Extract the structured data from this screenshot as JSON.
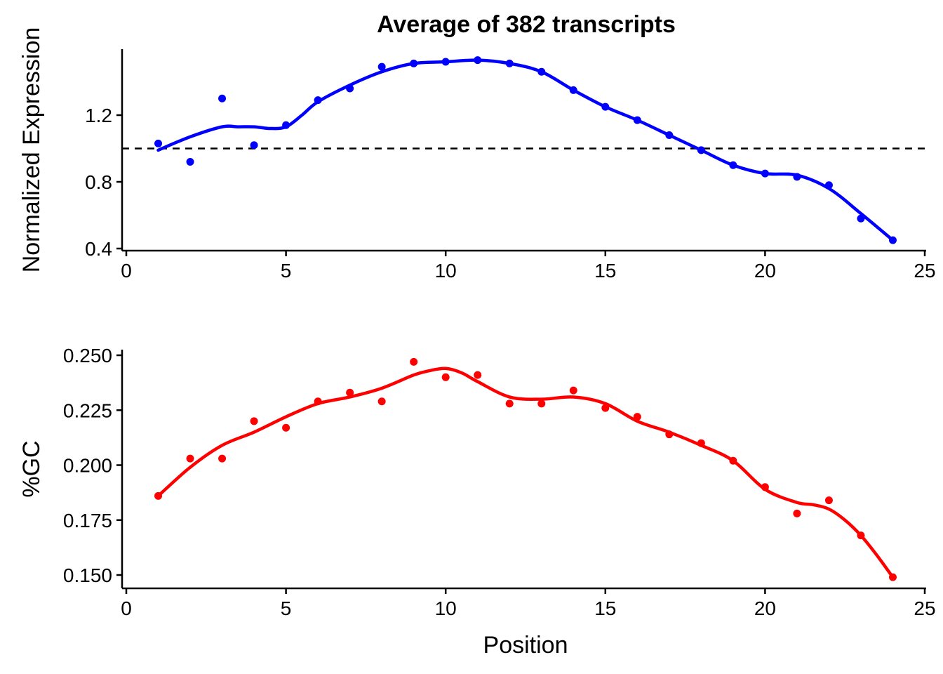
{
  "figure": {
    "title": "Average of 382 transcripts",
    "xlabel": "Position"
  },
  "colors": {
    "expression": "#0000ff",
    "gc": "#ff0000",
    "axis": "#000000"
  },
  "chart_data": [
    {
      "type": "scatter",
      "name": "expression",
      "title": "Average of 382 transcripts",
      "xlabel": "",
      "ylabel": "Normalized Expression",
      "xlim": [
        0,
        25
      ],
      "ylim": [
        0.4,
        1.6
      ],
      "xticks": [
        0,
        5,
        10,
        15,
        20,
        25
      ],
      "xtick_labels": [
        "0",
        "5",
        "10",
        "15",
        "20",
        "25"
      ],
      "yticks": [
        0.4,
        0.8,
        1.2
      ],
      "ytick_labels": [
        "0.4",
        "0.8",
        "1.2"
      ],
      "reference_line": 1.0,
      "points": {
        "x": [
          1,
          2,
          3,
          4,
          5,
          6,
          7,
          8,
          9,
          10,
          11,
          12,
          13,
          14,
          15,
          16,
          17,
          18,
          19,
          20,
          21,
          22,
          23,
          24
        ],
        "y": [
          1.03,
          0.92,
          1.3,
          1.02,
          1.14,
          1.29,
          1.36,
          1.49,
          1.51,
          1.52,
          1.53,
          1.51,
          1.46,
          1.35,
          1.25,
          1.17,
          1.08,
          0.99,
          0.9,
          0.85,
          0.83,
          0.78,
          0.58,
          0.45
        ]
      },
      "smooth": {
        "x": [
          1,
          2,
          3,
          3.5,
          4,
          4.5,
          5,
          5.5,
          6,
          7,
          8,
          9,
          10,
          11,
          12,
          13,
          14,
          15,
          16,
          17,
          18,
          19,
          20,
          21,
          22,
          23,
          24
        ],
        "y": [
          0.99,
          1.07,
          1.13,
          1.13,
          1.13,
          1.12,
          1.13,
          1.2,
          1.28,
          1.38,
          1.46,
          1.51,
          1.52,
          1.53,
          1.51,
          1.46,
          1.35,
          1.25,
          1.17,
          1.08,
          0.99,
          0.9,
          0.85,
          0.84,
          0.76,
          0.61,
          0.45
        ]
      },
      "grid": false,
      "legend": "none"
    },
    {
      "type": "scatter",
      "name": "gc",
      "title": "",
      "xlabel": "Position",
      "ylabel": "%GC",
      "xlim": [
        0,
        25
      ],
      "ylim": [
        0.145,
        0.25
      ],
      "xticks": [
        0,
        5,
        10,
        15,
        20,
        25
      ],
      "xtick_labels": [
        "0",
        "5",
        "10",
        "15",
        "20",
        "25"
      ],
      "yticks": [
        0.15,
        0.175,
        0.2,
        0.225,
        0.25
      ],
      "ytick_labels": [
        "0.150",
        "0.175",
        "0.200",
        "0.225",
        "0.250"
      ],
      "points": {
        "x": [
          1,
          2,
          3,
          4,
          5,
          6,
          7,
          8,
          9,
          10,
          11,
          12,
          13,
          14,
          15,
          16,
          17,
          18,
          19,
          20,
          21,
          22,
          23,
          24
        ],
        "y": [
          0.186,
          0.203,
          0.203,
          0.22,
          0.217,
          0.229,
          0.233,
          0.229,
          0.247,
          0.24,
          0.241,
          0.228,
          0.228,
          0.234,
          0.226,
          0.222,
          0.214,
          0.21,
          0.202,
          0.19,
          0.178,
          0.184,
          0.168,
          0.149
        ]
      },
      "smooth": {
        "x": [
          1,
          2,
          3,
          4,
          5,
          6,
          7,
          8,
          9,
          9.5,
          10,
          10.5,
          11,
          12,
          13,
          14,
          15,
          16,
          17,
          18,
          19,
          20,
          21,
          21.5,
          22,
          22.5,
          23,
          23.5,
          24
        ],
        "y": [
          0.186,
          0.199,
          0.209,
          0.215,
          0.222,
          0.228,
          0.231,
          0.235,
          0.241,
          0.243,
          0.244,
          0.242,
          0.238,
          0.231,
          0.23,
          0.231,
          0.228,
          0.22,
          0.215,
          0.209,
          0.202,
          0.189,
          0.183,
          0.182,
          0.18,
          0.175,
          0.168,
          0.159,
          0.149
        ]
      },
      "grid": false,
      "legend": "none"
    }
  ]
}
